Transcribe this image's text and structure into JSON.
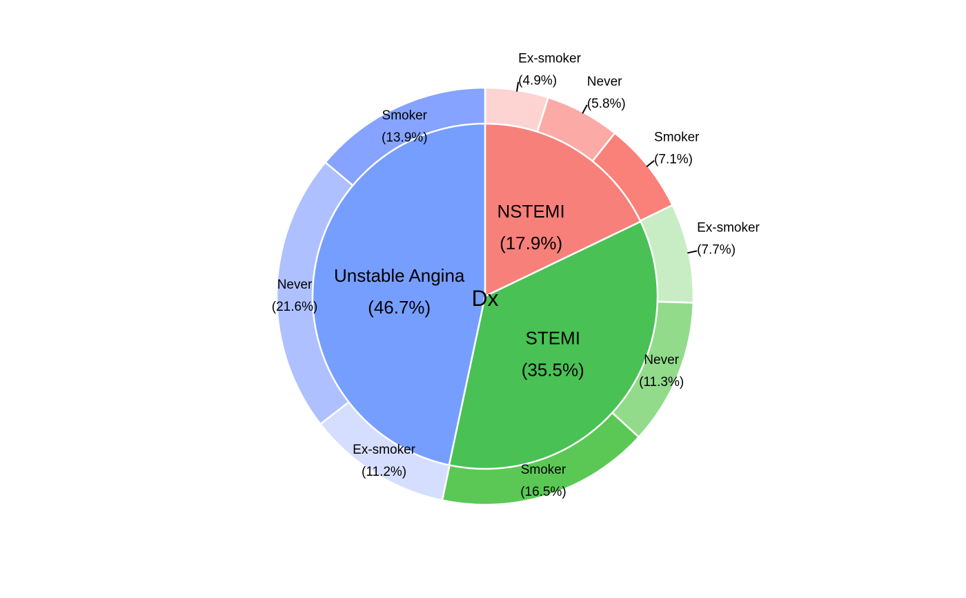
{
  "chart_data": {
    "type": "pie",
    "subtype": "pie-donut",
    "center_label": "Dx",
    "inner": [
      {
        "label": "NSTEMI",
        "value_label": "(17.9%)",
        "value": 17.9,
        "color": "#F8807A"
      },
      {
        "label": "STEMI",
        "value_label": "(35.5%)",
        "value": 35.5,
        "color": "#49C155"
      },
      {
        "label": "Unstable Angina",
        "value_label": "(46.7%)",
        "value": 46.7,
        "color": "#769EFF"
      }
    ],
    "outer": [
      {
        "parent": "NSTEMI",
        "label": "Ex-smoker",
        "value_label": "(4.9%)",
        "value": 4.9,
        "color": "#FED4D2"
      },
      {
        "parent": "NSTEMI",
        "label": "Never",
        "value_label": "(5.8%)",
        "value": 5.8,
        "color": "#FCAAA5"
      },
      {
        "parent": "NSTEMI",
        "label": "Smoker",
        "value_label": "(7.1%)",
        "value": 7.1,
        "color": "#FA807A"
      },
      {
        "parent": "STEMI",
        "label": "Ex-smoker",
        "value_label": "(7.7%)",
        "value": 7.7,
        "color": "#C8EDC5"
      },
      {
        "parent": "STEMI",
        "label": "Never",
        "value_label": "(11.3%)",
        "value": 11.3,
        "color": "#92DB8B"
      },
      {
        "parent": "STEMI",
        "label": "Smoker",
        "value_label": "(16.5%)",
        "value": 16.5,
        "color": "#5BC855"
      },
      {
        "parent": "Unstable Angina",
        "label": "Ex-smoker",
        "value_label": "(11.2%)",
        "value": 11.2,
        "color": "#D5DEFF"
      },
      {
        "parent": "Unstable Angina",
        "label": "Never",
        "value_label": "(21.6%)",
        "value": 21.6,
        "color": "#AEC0FF"
      },
      {
        "parent": "Unstable Angina",
        "label": "Smoker",
        "value_label": "(13.9%)",
        "value": 13.9,
        "color": "#85A3FF"
      }
    ]
  }
}
